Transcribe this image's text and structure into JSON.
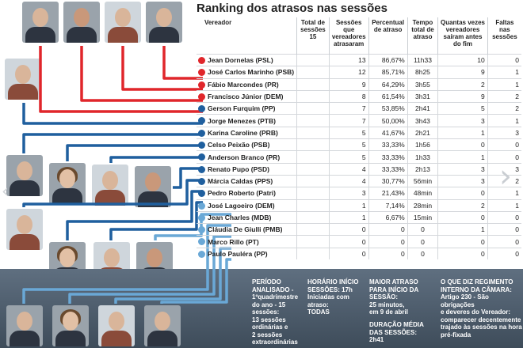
{
  "title": "Ranking dos atrasos nas sessões",
  "headers": [
    "Vereador",
    "Total de sessões 15",
    "Sessões que vereadores atrasaram",
    "Percentual de atraso",
    "Tempo total de atraso",
    "Quantas vezes vereadores saíram antes do fim",
    "Faltas nas sessões"
  ],
  "colors": {
    "red": "#e0262b",
    "darkblue": "#1f5f9e",
    "lightblue": "#6aa8d6"
  },
  "rows": [
    {
      "name": "Jean Dornelas (PSL)",
      "total": "13",
      "pct": "86,67%",
      "time": "11h33",
      "left": "10",
      "absent": "0",
      "color": "red"
    },
    {
      "name": "José Carlos Marinho (PSB)",
      "total": "12",
      "pct": "85,71%",
      "time": "8h25",
      "left": "9",
      "absent": "1",
      "color": "red"
    },
    {
      "name": "Fábio Marcondes (PR)",
      "total": "9",
      "pct": "64,29%",
      "time": "3h55",
      "left": "2",
      "absent": "1",
      "color": "red"
    },
    {
      "name": "Francisco Júnior (DEM)",
      "total": "8",
      "pct": "61,54%",
      "time": "3h31",
      "left": "9",
      "absent": "2",
      "color": "red"
    },
    {
      "name": "Gerson Furquim (PP)",
      "total": "7",
      "pct": "53,85%",
      "time": "2h41",
      "left": "5",
      "absent": "2",
      "color": "darkblue"
    },
    {
      "name": "Jorge Menezes (PTB)",
      "total": "7",
      "pct": "50,00%",
      "time": "3h43",
      "left": "3",
      "absent": "1",
      "color": "darkblue"
    },
    {
      "name": "Karina Caroline (PRB)",
      "total": "5",
      "pct": "41,67%",
      "time": "2h21",
      "left": "1",
      "absent": "3",
      "color": "darkblue"
    },
    {
      "name": "Celso Peixão (PSB)",
      "total": "5",
      "pct": "33,33%",
      "time": "1h56",
      "left": "0",
      "absent": "0",
      "color": "darkblue"
    },
    {
      "name": "Anderson Branco (PR)",
      "total": "5",
      "pct": "33,33%",
      "time": "1h33",
      "left": "1",
      "absent": "0",
      "color": "darkblue"
    },
    {
      "name": "Renato Pupo (PSD)",
      "total": "4",
      "pct": "33,33%",
      "time": "2h13",
      "left": "3",
      "absent": "3",
      "color": "darkblue"
    },
    {
      "name": "Márcia Caldas (PPS)",
      "total": "4",
      "pct": "30,77%",
      "time": "56min",
      "left": "3",
      "absent": "2",
      "color": "darkblue"
    },
    {
      "name": "Pedro Roberto (Patri)",
      "total": "3",
      "pct": "21,43%",
      "time": "48min",
      "left": "0",
      "absent": "1",
      "color": "darkblue"
    },
    {
      "name": "José Lagoeiro (DEM)",
      "total": "1",
      "pct": "7,14%",
      "time": "28min",
      "left": "2",
      "absent": "1",
      "color": "lightblue"
    },
    {
      "name": "Jean Charles (MDB)",
      "total": "1",
      "pct": "6,67%",
      "time": "15min",
      "left": "0",
      "absent": "0",
      "color": "lightblue"
    },
    {
      "name": "Cláudia De Giulli (PMB)",
      "total": "0",
      "pct": "0",
      "time": "0",
      "left": "1",
      "absent": "0",
      "color": "lightblue"
    },
    {
      "name": "Marco Rillo (PT)",
      "total": "0",
      "pct": "0",
      "time": "0",
      "left": "0",
      "absent": "0",
      "color": "lightblue"
    },
    {
      "name": "Paulo Pauléra (PP)",
      "total": "0",
      "pct": "0",
      "time": "0",
      "left": "0",
      "absent": "0",
      "color": "lightblue"
    }
  ],
  "notes": {
    "periodo": [
      "PERÍODO",
      "ANALISADO -",
      "1ºquadrimestre",
      "do ano - 15",
      "sessões:",
      "13 sessões",
      "ordinárias e",
      "2 sessões",
      "extraordinárias"
    ],
    "horario": [
      "HORÁRIO INÍCIO",
      "SESSÕES: 17h",
      "Iniciadas com",
      "atraso:",
      "TODAS"
    ],
    "maior": [
      "MAIOR ATRASO",
      "PARA INÍCIO DA",
      "SESSÃO:",
      "25 minutos,",
      "em 9 de abril"
    ],
    "duracao": [
      "DURAÇÃO MÉDIA",
      "DAS SESSÕES:",
      "2h41"
    ],
    "regimento": [
      "O QUE DIZ REGIMENTO",
      "INTERNO DA CÂMARA:",
      "Artigo 230 - São obrigações",
      "e deveres do Vereador:",
      "comparecer decentemente",
      "trajado às sessões na hora",
      "pré-fixada"
    ]
  }
}
